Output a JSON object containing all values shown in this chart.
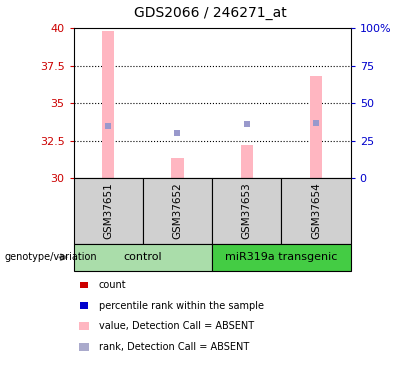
{
  "title": "GDS2066 / 246271_at",
  "samples": [
    "GSM37651",
    "GSM37652",
    "GSM37653",
    "GSM37654"
  ],
  "bar_values": [
    39.8,
    31.35,
    32.2,
    36.8
  ],
  "rank_values": [
    33.5,
    33.0,
    33.6,
    33.7
  ],
  "bar_color": "#ffb6c1",
  "rank_dot_color": "#9999cc",
  "ymin": 30,
  "ymax": 40,
  "yticks": [
    30,
    32.5,
    35,
    37.5,
    40
  ],
  "ytick_labels": [
    "30",
    "32.5",
    "35",
    "37.5",
    "40"
  ],
  "right_yticks_pct": [
    0,
    25,
    50,
    75,
    100
  ],
  "right_ytick_labels": [
    "0",
    "25",
    "50",
    "75",
    "100%"
  ],
  "left_tick_color": "#cc0000",
  "right_tick_color": "#0000cc",
  "group1_color": "#aaddaa",
  "group2_color": "#44cc44",
  "sample_box_color": "#d0d0d0",
  "legend_colors": [
    "#cc0000",
    "#0000cc",
    "#ffb6c1",
    "#aaaacc"
  ],
  "legend_labels": [
    "count",
    "percentile rank within the sample",
    "value, Detection Call = ABSENT",
    "rank, Detection Call = ABSENT"
  ],
  "bar_width": 0.18
}
